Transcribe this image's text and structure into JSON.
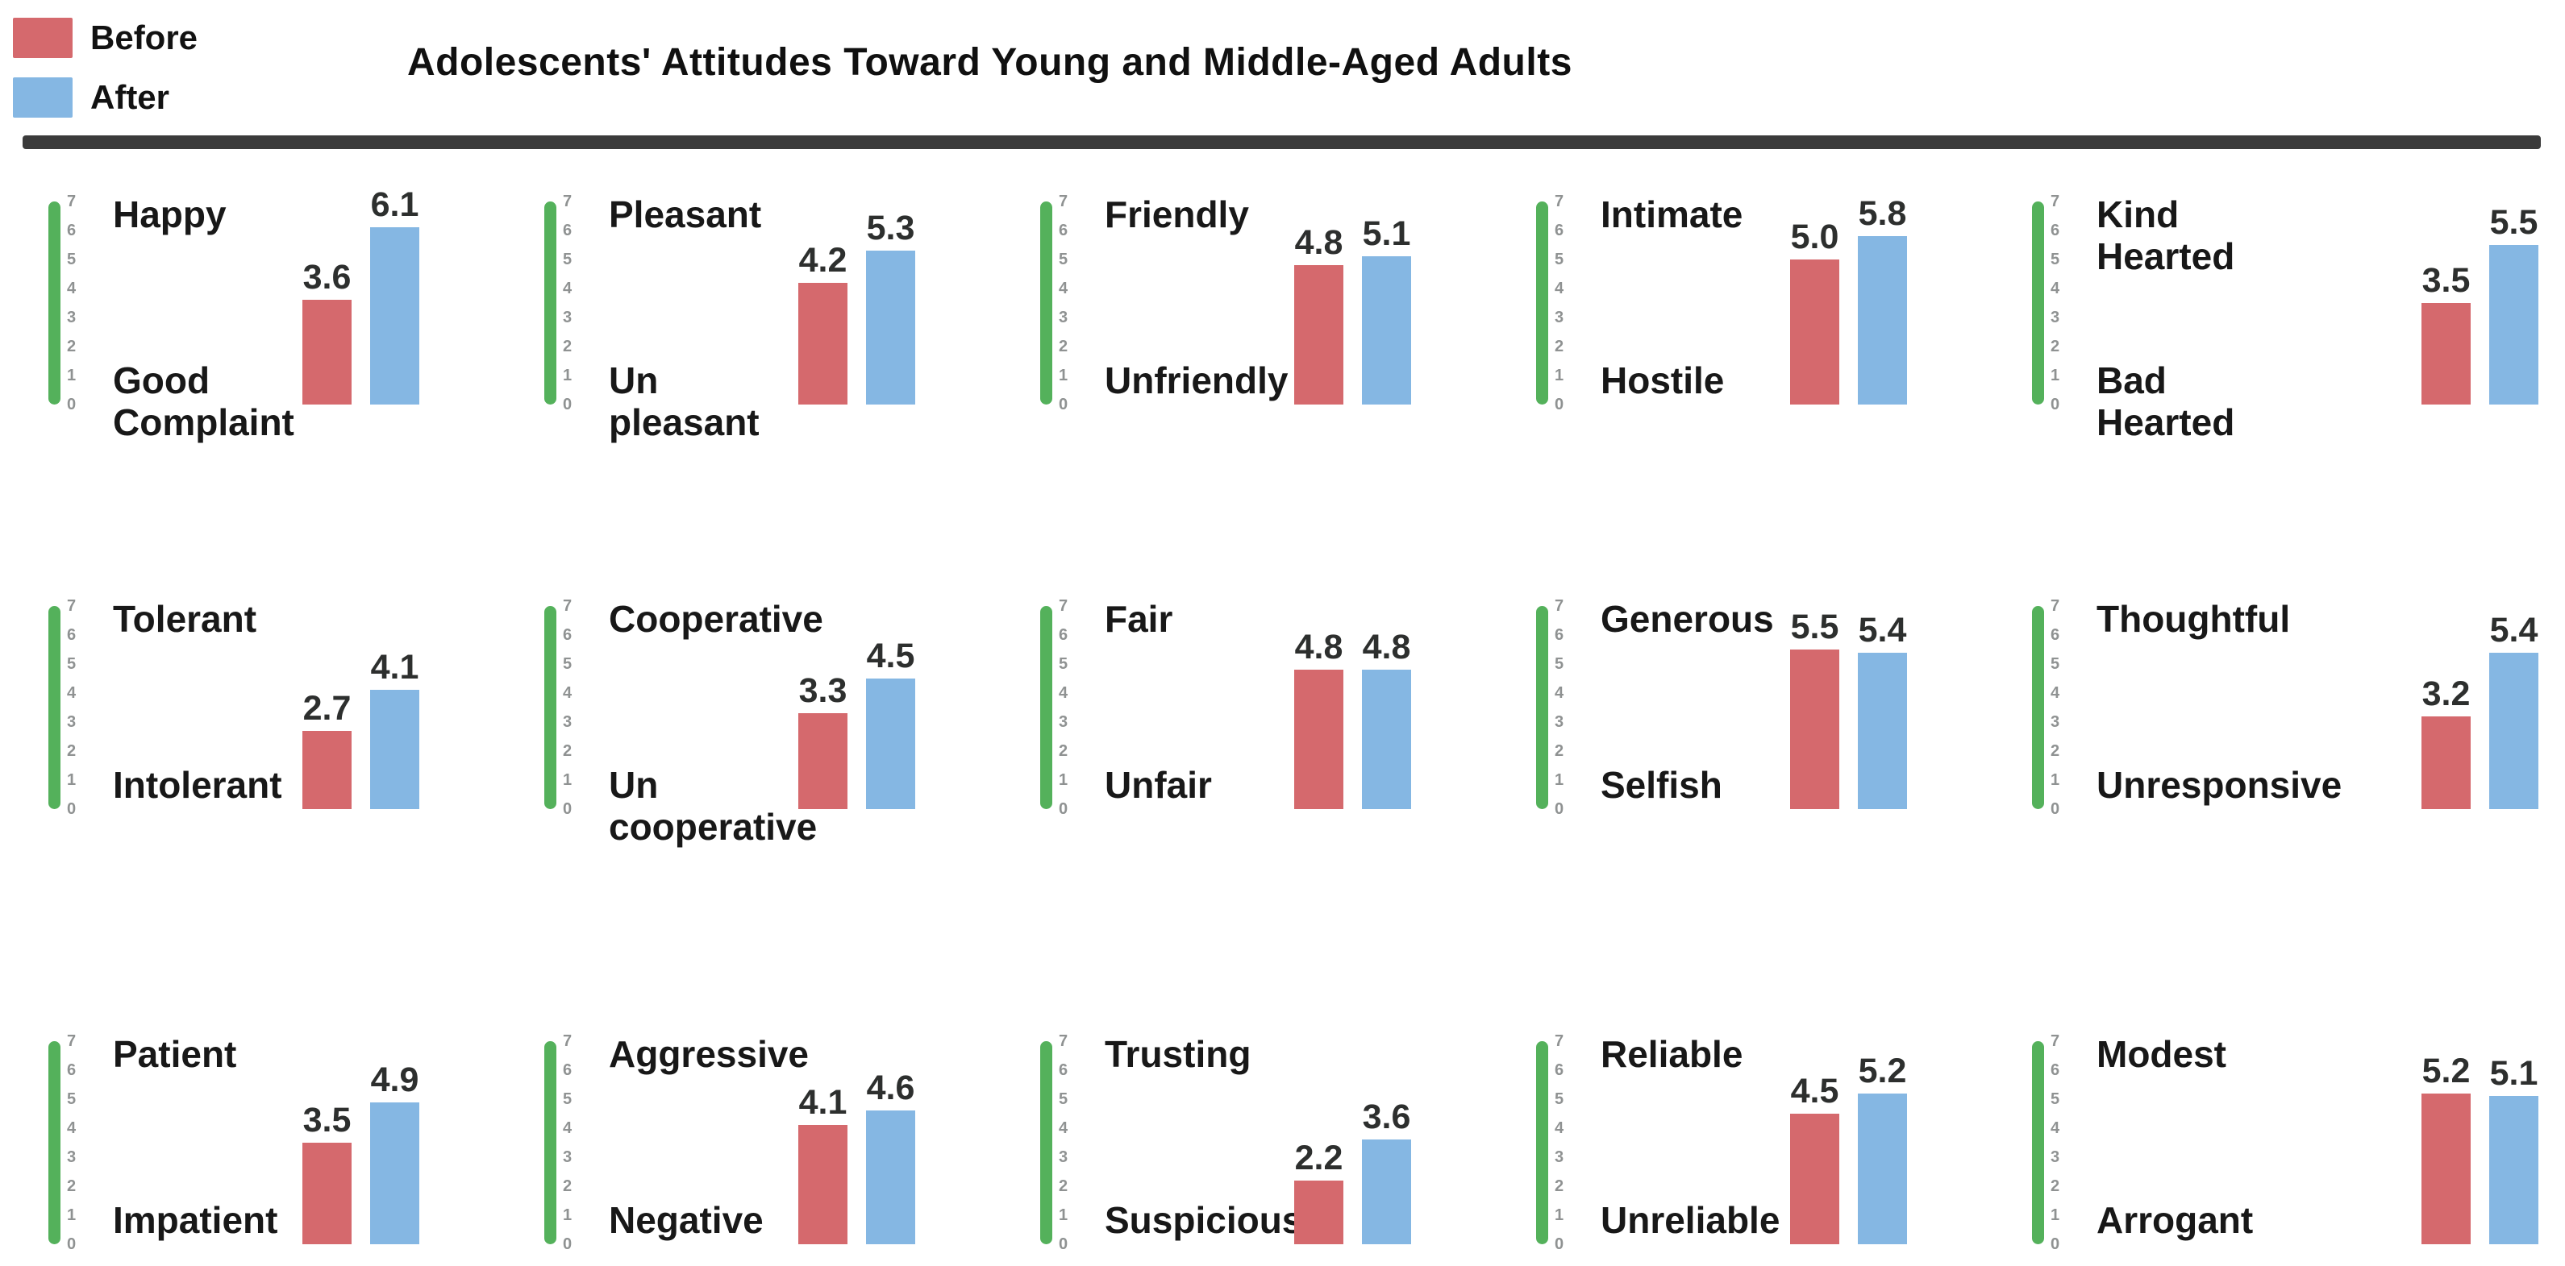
{
  "header": {
    "legend": {
      "before_label": "Before",
      "after_label": "After"
    }
  },
  "chart_data": {
    "type": "bar",
    "title": "Adolescents' Attitudes Toward Young and Middle-Aged Adults",
    "ylim": [
      0,
      7
    ],
    "axis_ticks": [
      "7",
      "6",
      "5",
      "4",
      "3",
      "2",
      "1",
      "0"
    ],
    "grid": false,
    "legend_position": "top-left",
    "series": [
      {
        "name": "Before",
        "color": "#d5696d"
      },
      {
        "name": "After",
        "color": "#85b7e3"
      }
    ],
    "axis_color": "#54b15b",
    "layout": "15 bipolar adjective panels, 3 rows x 5 columns",
    "panels": [
      {
        "positive": "Happy",
        "negative": "Good Complaint",
        "before": 3.6,
        "after": 6.1
      },
      {
        "positive": "Pleasant",
        "negative": "Un pleasant",
        "before": 4.2,
        "after": 5.3
      },
      {
        "positive": "Friendly",
        "negative": "Unfriendly",
        "before": 4.8,
        "after": 5.1
      },
      {
        "positive": "Intimate",
        "negative": "Hostile",
        "before": 5.0,
        "after": 5.8
      },
      {
        "positive": "Kind Hearted",
        "negative": "Bad Hearted",
        "before": 3.5,
        "after": 5.5
      },
      {
        "positive": "Tolerant",
        "negative": "Intolerant",
        "before": 2.7,
        "after": 4.1
      },
      {
        "positive": "Cooperative",
        "negative": "Un cooperative",
        "before": 3.3,
        "after": 4.5
      },
      {
        "positive": "Fair",
        "negative": "Unfair",
        "before": 4.8,
        "after": 4.8
      },
      {
        "positive": "Generous",
        "negative": "Selfish",
        "before": 5.5,
        "after": 5.4
      },
      {
        "positive": "Thoughtful",
        "negative": "Unresponsive",
        "before": 3.2,
        "after": 5.4
      },
      {
        "positive": "Patient",
        "negative": "Impatient",
        "before": 3.5,
        "after": 4.9
      },
      {
        "positive": "Aggressive",
        "negative": "Negative",
        "before": 4.1,
        "after": 4.6
      },
      {
        "positive": "Trusting",
        "negative": "Suspicious",
        "before": 2.2,
        "after": 3.6
      },
      {
        "positive": "Reliable",
        "negative": "Unreliable",
        "before": 4.5,
        "after": 5.2
      },
      {
        "positive": "Modest",
        "negative": "Arrogant",
        "before": 5.2,
        "after": 5.1
      }
    ]
  }
}
